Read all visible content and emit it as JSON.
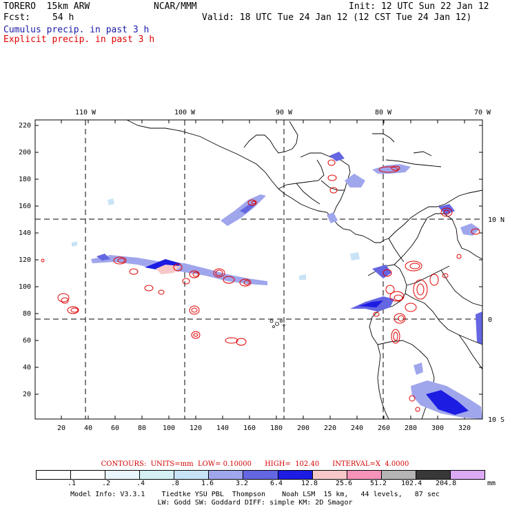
{
  "header": {
    "model": "TORERO  15km ARW",
    "org": "NCAR/MMM",
    "init": "Init: 12 UTC Sun 22 Jan 12",
    "fcst_label": "Fcst:",
    "fcst_value": "54 h",
    "valid": "Valid: 18 UTC Tue 24 Jan 12 (12 CST Tue 24 Jan 12)",
    "legend_cumulus": "Cumulus precip. in past 3 h",
    "legend_explicit": "Explicit precip. in past 3 h",
    "cumulus_color": "#1a1aa8",
    "explicit_color": "#e00000"
  },
  "map": {
    "lon_labels": [
      "110 W",
      "100 W",
      "90 W",
      "80 W",
      "70 W"
    ],
    "lat_labels": [
      "10 N",
      "0",
      "10 S"
    ],
    "x_ticks": [
      "20",
      "40",
      "60",
      "80",
      "100",
      "120",
      "140",
      "160",
      "180",
      "200",
      "220",
      "240",
      "260",
      "280",
      "300",
      "320"
    ],
    "y_ticks": [
      "20",
      "40",
      "60",
      "80",
      "100",
      "120",
      "140",
      "160",
      "180",
      "200",
      "220"
    ]
  },
  "colorbar": {
    "labels": [
      ".1",
      ".2",
      ".4",
      ".8",
      "1.6",
      "3.2",
      "6.4",
      "12.8",
      "25.6",
      "51.2",
      "102.4",
      "204.8"
    ],
    "unit": "mm",
    "colors": [
      "#ffffff",
      "#ffffff",
      "#eaf6fb",
      "#d5f0f5",
      "#c8e3f5",
      "#a0a6ec",
      "#6466e2",
      "#1c1ce2",
      "#f8c8c8",
      "#f593bb",
      "#b5b5b5",
      "#383838",
      "#dcaaf5"
    ]
  },
  "contours": {
    "label": "CONTOURS:  UNITS=mm  LOW= 0.10000      HIGH=  102.40      INTERVAL=X  4.0000"
  },
  "model_info": {
    "line1": "Model Info: V3.3.1    Tiedtke YSU PBL  Thompson    Noah LSM  15 km,   44 levels,   87 sec",
    "line2": "LW: Godd SW: Goddard DIFF: simple KM: 2D Smagor"
  }
}
